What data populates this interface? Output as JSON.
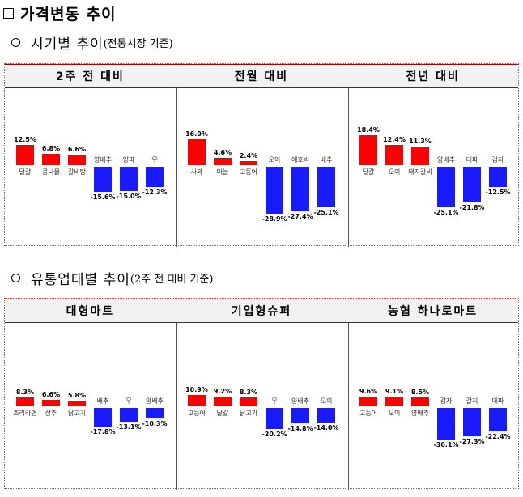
{
  "title": "가격변동 추이",
  "section1": {
    "main": "시기별 추이",
    "paren": "(전통시장 기준)"
  },
  "section2": {
    "main": "유통업태별 추이",
    "paren": "(2주 전 대비 기준)"
  },
  "table1": {
    "headers": [
      "2주 전 대비",
      "전월 대비",
      "전년 대비"
    ],
    "charts": [
      {
        "type": "bar",
        "categories": [
          "달걀",
          "콩나물",
          "갈비탕",
          "양배추",
          "양파",
          "무"
        ],
        "values": [
          12.5,
          6.8,
          6.6,
          -15.6,
          -15.0,
          -12.3
        ],
        "labels": [
          "12.5%",
          "6.8%",
          "6.6%",
          "-15.6%",
          "-15.0%",
          "-12.3%"
        ]
      },
      {
        "type": "bar",
        "categories": [
          "사과",
          "마늘",
          "고등어",
          "오이",
          "애호박",
          "배추"
        ],
        "values": [
          16.0,
          4.6,
          2.4,
          -28.9,
          -27.4,
          -25.1
        ],
        "labels": [
          "16.0%",
          "4.6%",
          "2.4%",
          "-28.9%",
          "-27.4%",
          "-25.1%"
        ]
      },
      {
        "type": "bar",
        "categories": [
          "달걀",
          "오이",
          "돼지갈비",
          "양배추",
          "대파",
          "감자"
        ],
        "values": [
          18.4,
          12.4,
          11.3,
          -25.1,
          -21.8,
          -12.5
        ],
        "labels": [
          "18.4%",
          "12.4%",
          "11.3%",
          "-25.1%",
          "-21.8%",
          "-12.5%"
        ]
      }
    ]
  },
  "table2": {
    "headers": [
      "대형마트",
      "기업형슈퍼",
      "농협 하나로마트"
    ],
    "charts": [
      {
        "type": "bar",
        "categories": [
          "조리라면",
          "상추",
          "닭고기",
          "배추",
          "무",
          "양배추"
        ],
        "values": [
          8.3,
          6.6,
          5.8,
          -17.8,
          -13.1,
          -10.3
        ],
        "labels": [
          "8.3%",
          "6.6%",
          "5.8%",
          "-17.8%",
          "-13.1%",
          "-10.3%"
        ]
      },
      {
        "type": "bar",
        "categories": [
          "고등어",
          "달걀",
          "닭고기",
          "무",
          "양배추",
          "오이"
        ],
        "values": [
          10.9,
          9.2,
          8.3,
          -20.2,
          -14.8,
          -14.0
        ],
        "labels": [
          "10.9%",
          "9.2%",
          "8.3%",
          "-20.2%",
          "-14.8%",
          "-14.0%"
        ]
      },
      {
        "type": "bar",
        "categories": [
          "고등어",
          "오이",
          "양배추",
          "감자",
          "갈치",
          "대파"
        ],
        "values": [
          9.6,
          9.1,
          8.5,
          -30.1,
          -27.3,
          -22.4
        ],
        "labels": [
          "9.6%",
          "9.1%",
          "8.5%",
          "-30.1%",
          "-27.3%",
          "-22.4%"
        ]
      }
    ]
  },
  "colors": {
    "up": "#ff0000",
    "down": "#1a1aff"
  }
}
